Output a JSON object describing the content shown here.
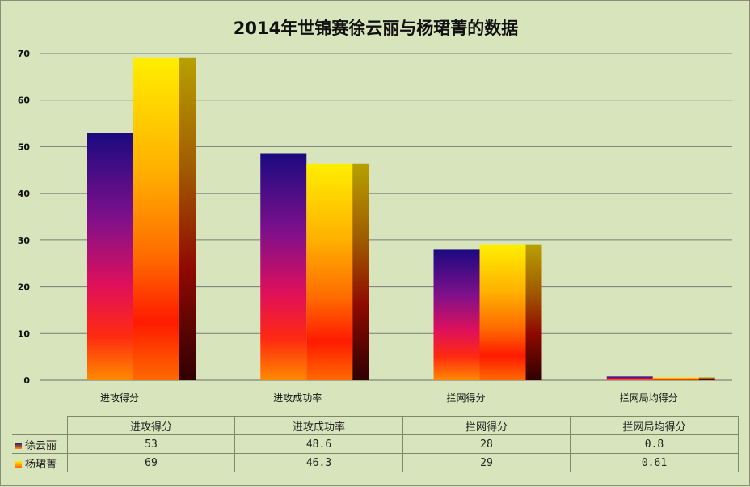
{
  "chart_data": {
    "type": "bar",
    "title": "2014年世锦赛徐云丽与杨珺菁的数据",
    "categories": [
      "进攻得分",
      "进攻成功率",
      "拦网得分",
      "拦网局均得分"
    ],
    "series": [
      {
        "name": "徐云丽",
        "values": [
          53,
          48.6,
          28,
          0.8
        ],
        "value_labels": [
          "53",
          "48.6",
          "28",
          "0.8"
        ],
        "color_top": "#1a0a80",
        "color_bottom": "#ff8a00"
      },
      {
        "name": "杨珺菁",
        "values": [
          69,
          46.3,
          29,
          0.61
        ],
        "value_labels": [
          "69",
          "46.3",
          "29",
          "0.61"
        ],
        "color_top": "#ffee00",
        "color_bottom": "#ff6a00"
      }
    ],
    "yticks": [
      "0",
      "10",
      "20",
      "30",
      "40",
      "50",
      "60",
      "70"
    ],
    "ylim": [
      0,
      70
    ],
    "grid": true,
    "legend": "data-table",
    "xlabel": "",
    "ylabel": ""
  }
}
